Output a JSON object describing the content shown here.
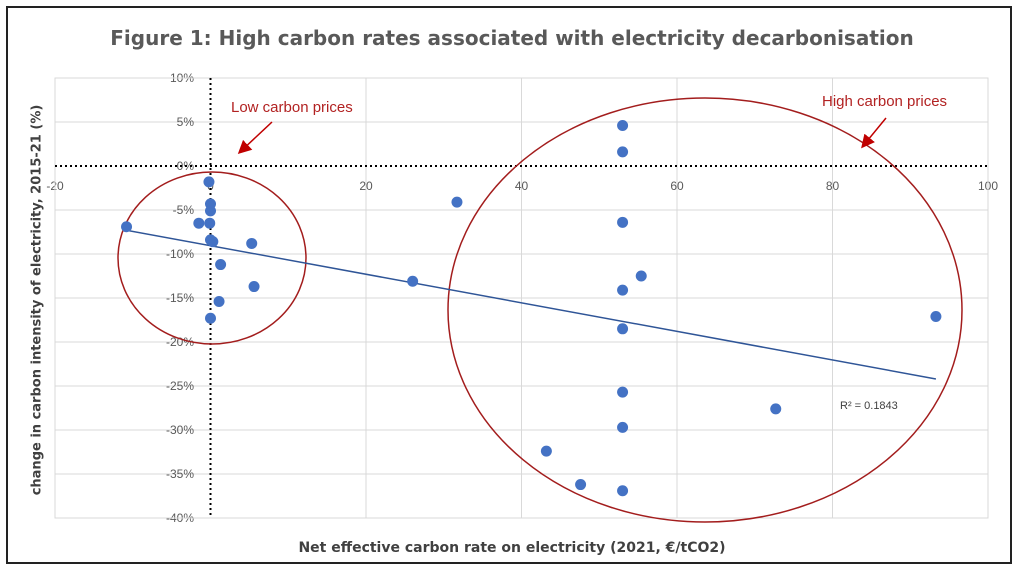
{
  "chart_data": {
    "type": "scatter",
    "title": "Figure 1: High carbon rates associated with electricity decarbonisation",
    "xlabel": "Net effective carbon rate on electricity (2021, €/tCO2)",
    "ylabel": "change in carbon intensity of electricity, 2015-21 (%)",
    "xlim": [
      -20,
      100
    ],
    "ylim": [
      -40,
      10
    ],
    "x_ticks": [
      "-20",
      "0",
      "20",
      "40",
      "60",
      "80",
      "100"
    ],
    "y_ticks": [
      "10%",
      "5%",
      "0%",
      "-5%",
      "-10%",
      "-15%",
      "-20%",
      "-25%",
      "-30%",
      "-35%",
      "-40%"
    ],
    "grid": true,
    "points": [
      {
        "x": -10.8,
        "y": -6.9
      },
      {
        "x": -1.5,
        "y": -6.5
      },
      {
        "x": -0.2,
        "y": -1.8
      },
      {
        "x": 0.0,
        "y": -4.3
      },
      {
        "x": 0.0,
        "y": -5.1
      },
      {
        "x": -0.1,
        "y": -6.5
      },
      {
        "x": 0.0,
        "y": -8.4
      },
      {
        "x": 0.3,
        "y": -8.6
      },
      {
        "x": 1.3,
        "y": -11.2
      },
      {
        "x": 1.1,
        "y": -15.4
      },
      {
        "x": 0.0,
        "y": -17.3
      },
      {
        "x": 5.3,
        "y": -8.8
      },
      {
        "x": 5.6,
        "y": -13.7
      },
      {
        "x": 26.0,
        "y": -13.1
      },
      {
        "x": 31.7,
        "y": -4.1
      },
      {
        "x": 53.0,
        "y": 4.6
      },
      {
        "x": 53.0,
        "y": 1.6
      },
      {
        "x": 53.0,
        "y": -6.4
      },
      {
        "x": 55.4,
        "y": -12.5
      },
      {
        "x": 53.0,
        "y": -14.1
      },
      {
        "x": 53.0,
        "y": -18.5
      },
      {
        "x": 53.0,
        "y": -25.7
      },
      {
        "x": 53.0,
        "y": -29.7
      },
      {
        "x": 43.2,
        "y": -32.4
      },
      {
        "x": 47.6,
        "y": -36.2
      },
      {
        "x": 53.0,
        "y": -36.9
      },
      {
        "x": 72.7,
        "y": -27.6
      },
      {
        "x": 93.3,
        "y": -17.1
      }
    ],
    "trendline": {
      "x": [
        -10.8,
        93.3
      ],
      "y": [
        -7.3,
        -24.2
      ]
    },
    "r_squared_label": "R² = 0.1843",
    "annotations": [
      {
        "text": "Low carbon prices"
      },
      {
        "text": "High carbon prices"
      }
    ],
    "colors": {
      "points": "#4472c4",
      "trendline": "#2f5597",
      "annotation": "#b22222",
      "grid": "#d9d9d9"
    }
  }
}
